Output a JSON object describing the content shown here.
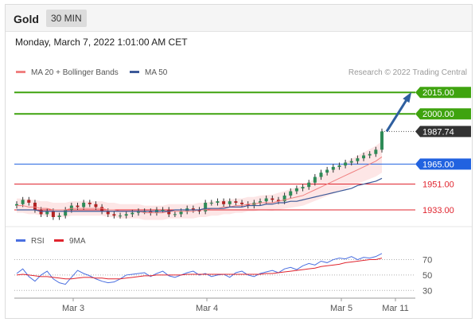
{
  "header": {
    "instrument": "Gold",
    "timeframe": "30 MIN"
  },
  "datetime": "Monday, March 7, 2022 1:01:00 AM CET",
  "credit": "Research © 2022 Trading Central",
  "colors": {
    "resistance": "#3fa30f",
    "current": "#333333",
    "pivot": "#2162e0",
    "support": "#e0242e",
    "bollinger_fill": "#fde3e3",
    "ma20": "#f08080",
    "ma50": "#3d5a99",
    "rsi": "#4a6fe0",
    "rsi_ma": "#e0242e",
    "candle_up": "#2e8b57",
    "candle_down": "#b22222"
  },
  "chart_data": [
    {
      "type": "candlestick",
      "title": "",
      "legend": [
        {
          "name": "MA 20 + Bollinger Bands",
          "color": "#f08080"
        },
        {
          "name": "MA 50",
          "color": "#3d5a99"
        }
      ],
      "legend_placement": "top-left",
      "x_tick_labels": [
        "Mar 3",
        "Mar 4",
        "Mar 5",
        "Mar 11"
      ],
      "y_range": [
        1923,
        2024
      ],
      "levels": [
        {
          "label": "2015.00",
          "value": 2015.0,
          "kind": "resistance"
        },
        {
          "label": "2000.00",
          "value": 2000.0,
          "kind": "resistance"
        },
        {
          "label": "1987.74",
          "value": 1987.74,
          "kind": "current"
        },
        {
          "label": "1965.00",
          "value": 1965.0,
          "kind": "pivot"
        },
        {
          "label": "1951.00",
          "value": 1951.0,
          "kind": "support"
        },
        {
          "label": "1933.00",
          "value": 1933.0,
          "kind": "support"
        }
      ],
      "forecast_arrow": {
        "from": 1987.74,
        "to": 2015.0
      },
      "close_path": [
        1937,
        1940,
        1938,
        1933,
        1930,
        1932,
        1928,
        1929,
        1933,
        1936,
        1935,
        1938,
        1937,
        1935,
        1932,
        1930,
        1929,
        1929,
        1930,
        1931,
        1932,
        1932,
        1931,
        1933,
        1933,
        1930,
        1930,
        1932,
        1934,
        1933,
        1932,
        1938,
        1938,
        1939,
        1937,
        1939,
        1938,
        1937,
        1936,
        1938,
        1939,
        1941,
        1940,
        1939,
        1943,
        1946,
        1948,
        1949,
        1952,
        1956,
        1959,
        1961,
        1963,
        1964,
        1966,
        1967,
        1969,
        1971,
        1972,
        1975,
        1987.74
      ],
      "ma20": [
        1936,
        1936,
        1935,
        1935,
        1934,
        1934,
        1933,
        1933,
        1933,
        1934,
        1934,
        1934,
        1934,
        1934,
        1934,
        1933,
        1933,
        1932,
        1932,
        1932,
        1932,
        1931,
        1931,
        1931,
        1931,
        1932,
        1932,
        1932,
        1932,
        1932,
        1933,
        1933,
        1934,
        1934,
        1935,
        1935,
        1936,
        1936,
        1937,
        1937,
        1938,
        1938,
        1938,
        1939,
        1940,
        1941,
        1942,
        1943,
        1945,
        1947,
        1949,
        1951,
        1953,
        1955,
        1957,
        1959,
        1961,
        1963,
        1965,
        1967,
        1970
      ],
      "ma50": [
        1933,
        1933,
        1933,
        1933,
        1932,
        1932,
        1932,
        1932,
        1932,
        1932,
        1932,
        1932,
        1932,
        1932,
        1932,
        1932,
        1932,
        1932,
        1932,
        1932,
        1932,
        1932,
        1932,
        1932,
        1932,
        1932,
        1933,
        1933,
        1933,
        1933,
        1933,
        1934,
        1934,
        1934,
        1934,
        1935,
        1935,
        1935,
        1936,
        1936,
        1936,
        1937,
        1937,
        1938,
        1938,
        1939,
        1939,
        1940,
        1941,
        1942,
        1943,
        1944,
        1945,
        1946,
        1947,
        1948,
        1950,
        1951,
        1952,
        1953,
        1955
      ]
    },
    {
      "type": "line",
      "title": "",
      "legend": [
        {
          "name": "RSI",
          "color": "#4a6fe0"
        },
        {
          "name": "9MA",
          "color": "#e0242e"
        }
      ],
      "legend_placement": "top-left",
      "y_range": [
        20,
        85
      ],
      "levels": [
        {
          "label": "70",
          "value": 70
        },
        {
          "label": "50",
          "value": 50
        },
        {
          "label": "30",
          "value": 30
        }
      ],
      "series": [
        {
          "name": "RSI",
          "values": [
            52,
            58,
            48,
            42,
            50,
            55,
            45,
            40,
            38,
            47,
            56,
            52,
            49,
            45,
            42,
            40,
            41,
            45,
            50,
            51,
            52,
            53,
            48,
            52,
            55,
            49,
            47,
            50,
            53,
            55,
            50,
            52,
            48,
            50,
            51,
            47,
            53,
            55,
            50,
            48,
            52,
            54,
            56,
            53,
            58,
            60,
            57,
            62,
            65,
            63,
            68,
            66,
            70,
            72,
            71,
            74,
            70,
            73,
            72,
            74,
            78
          ]
        },
        {
          "name": "9MA",
          "values": [
            50,
            51,
            50,
            49,
            48,
            48,
            47,
            46,
            45,
            45,
            46,
            47,
            47,
            46,
            46,
            45,
            45,
            45,
            46,
            47,
            48,
            49,
            49,
            50,
            50,
            50,
            50,
            50,
            51,
            51,
            51,
            51,
            51,
            51,
            51,
            51,
            51,
            51,
            51,
            51,
            51,
            52,
            52,
            53,
            54,
            55,
            56,
            57,
            58,
            59,
            61,
            62,
            63,
            64,
            66,
            67,
            68,
            69,
            70,
            70,
            72
          ]
        }
      ]
    }
  ]
}
